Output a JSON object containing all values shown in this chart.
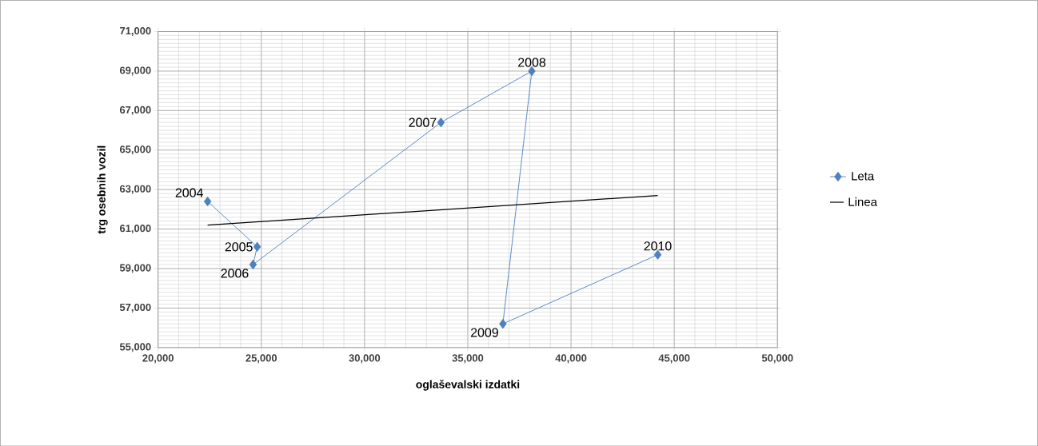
{
  "chart_data": {
    "type": "line",
    "xlabel": "oglaševalski izdatki",
    "ylabel": "trg osebnih vozil",
    "xlim": [
      20000,
      50000
    ],
    "xticks": [
      {
        "value": 20000,
        "label": "20,000"
      },
      {
        "value": 25000,
        "label": "25,000"
      },
      {
        "value": 30000,
        "label": "30,000"
      },
      {
        "value": 35000,
        "label": "35,000"
      },
      {
        "value": 40000,
        "label": "40,000"
      },
      {
        "value": 45000,
        "label": "45,000"
      },
      {
        "value": 50000,
        "label": "50,000"
      }
    ],
    "ylim": [
      55000,
      71000
    ],
    "yticks": [
      {
        "value": 55000,
        "label": "55,000"
      },
      {
        "value": 57000,
        "label": "57,000"
      },
      {
        "value": 59000,
        "label": "59,000"
      },
      {
        "value": 61000,
        "label": "61,000"
      },
      {
        "value": 63000,
        "label": "63,000"
      },
      {
        "value": 65000,
        "label": "65,000"
      },
      {
        "value": 67000,
        "label": "67,000"
      },
      {
        "value": 69000,
        "label": "69,000"
      },
      {
        "value": 71000,
        "label": "71,000"
      }
    ],
    "grid": true,
    "legend": "right",
    "series": [
      {
        "name": "Leta",
        "color": "#4f81bd",
        "marker": "diamond",
        "x": [
          22400,
          24800,
          24600,
          33700,
          38100,
          36700,
          44200
        ],
        "values": [
          62400,
          60100,
          59200,
          66400,
          69000,
          56200,
          59700
        ]
      },
      {
        "name": "Linea",
        "color": "#000000",
        "marker": "none",
        "x": [
          22400,
          44200
        ],
        "values": [
          61200,
          62700
        ]
      }
    ],
    "annotations": [
      {
        "text": "2004",
        "x": 22400,
        "y": 62400
      },
      {
        "text": "2005",
        "x": 24800,
        "y": 60100
      },
      {
        "text": "2006",
        "x": 24600,
        "y": 59200
      },
      {
        "text": "2007",
        "x": 33700,
        "y": 66400
      },
      {
        "text": "2008",
        "x": 38100,
        "y": 69000
      },
      {
        "text": "2009",
        "x": 36700,
        "y": 56200
      },
      {
        "text": "2010",
        "x": 44200,
        "y": 59700
      }
    ]
  }
}
